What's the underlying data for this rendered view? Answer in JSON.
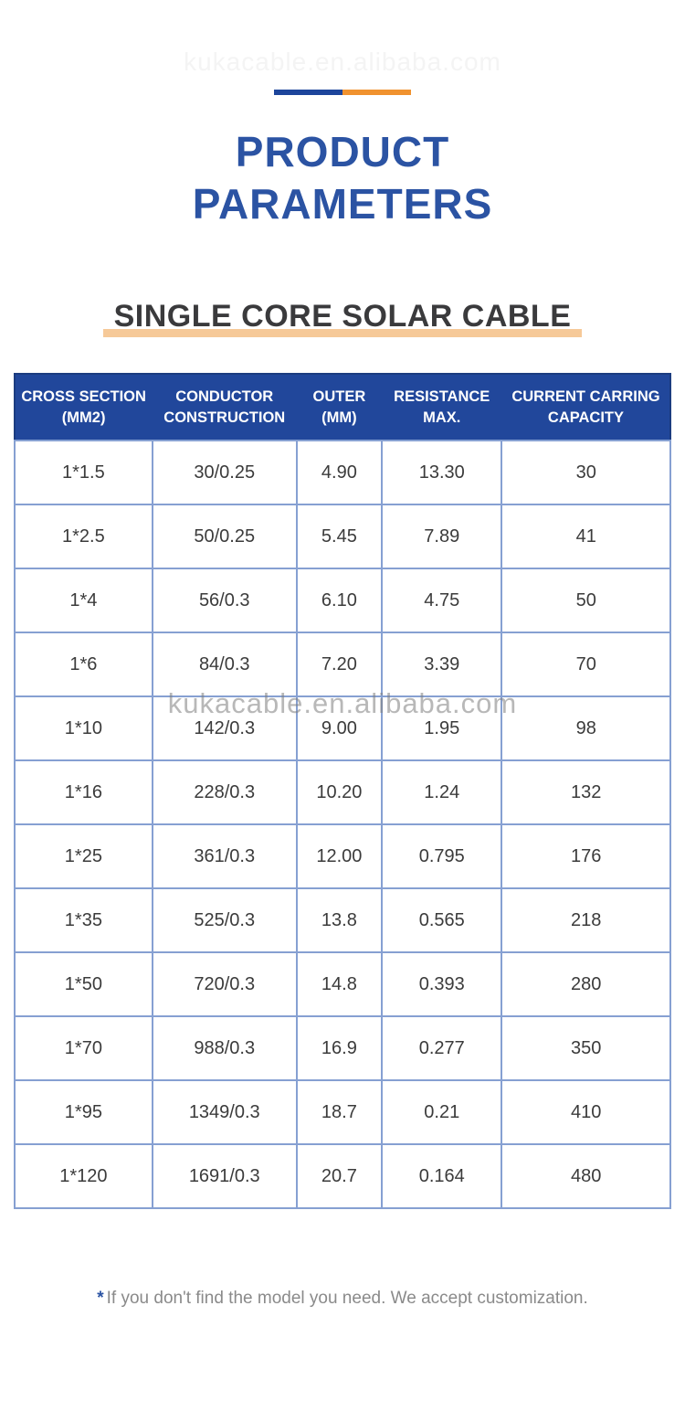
{
  "page": {
    "top_watermark": "kukacable.en.alibaba.com",
    "watermark": "kukacable.en.alibaba.com",
    "title_line1": "PRODUCT",
    "title_line2": "PARAMETERS",
    "subtitle": "SINGLE CORE SOLAR CABLE",
    "footer_asterisk": "*",
    "footer_note": "If you don't find the model you need. We accept customization."
  },
  "colors": {
    "title_blue": "#2B53A3",
    "header_blue": "#21479B",
    "deco_blue": "#1D459B",
    "deco_orange": "#F0922F",
    "underline_peach": "#F6C998",
    "outer_border": "#1C3C80",
    "inner_border": "#86A0D2"
  },
  "table": {
    "columns": [
      {
        "line1": "CROSS SECTION",
        "line2": "(MM2)"
      },
      {
        "line1": "CONDUCTOR",
        "line2": "CONSTRUCTION"
      },
      {
        "line1": "OUTER",
        "line2": "(MM)"
      },
      {
        "line1": "RESISTANCE",
        "line2": "MAX."
      },
      {
        "line1": "CURRENT CARRING",
        "line2": "CAPACITY"
      }
    ],
    "rows": [
      [
        "1*1.5",
        "30/0.25",
        "4.90",
        "13.30",
        "30"
      ],
      [
        "1*2.5",
        "50/0.25",
        "5.45",
        "7.89",
        "41"
      ],
      [
        "1*4",
        "56/0.3",
        "6.10",
        "4.75",
        "50"
      ],
      [
        "1*6",
        "84/0.3",
        "7.20",
        "3.39",
        "70"
      ],
      [
        "1*10",
        "142/0.3",
        "9.00",
        "1.95",
        "98"
      ],
      [
        "1*16",
        "228/0.3",
        "10.20",
        "1.24",
        "132"
      ],
      [
        "1*25",
        "361/0.3",
        "12.00",
        "0.795",
        "176"
      ],
      [
        "1*35",
        "525/0.3",
        "13.8",
        "0.565",
        "218"
      ],
      [
        "1*50",
        "720/0.3",
        "14.8",
        "0.393",
        "280"
      ],
      [
        "1*70",
        "988/0.3",
        "16.9",
        "0.277",
        "350"
      ],
      [
        "1*95",
        "1349/0.3",
        "18.7",
        "0.21",
        "410"
      ],
      [
        "1*120",
        "1691/0.3",
        "20.7",
        "0.164",
        "480"
      ]
    ]
  }
}
